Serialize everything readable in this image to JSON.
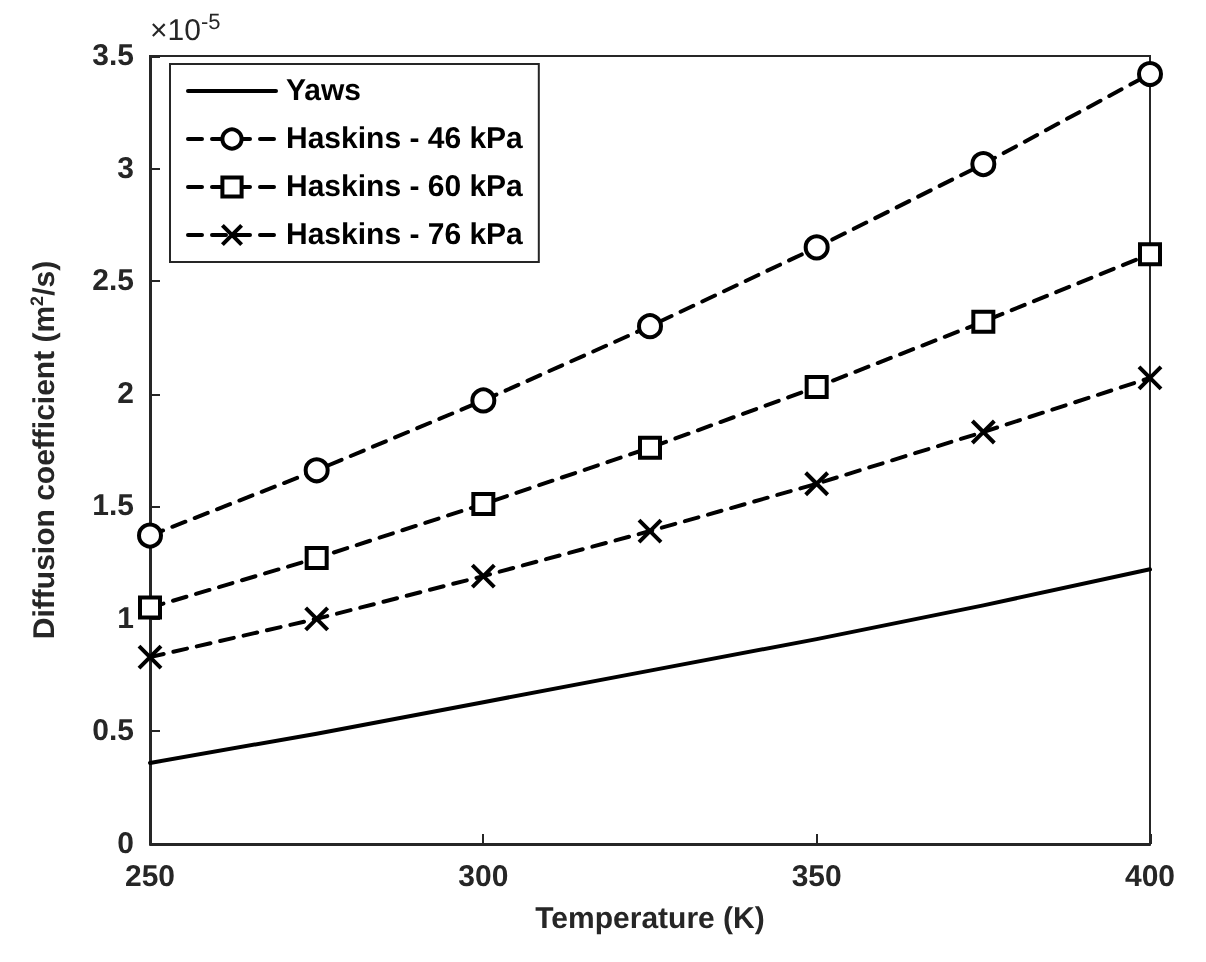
{
  "chart_data": {
    "type": "line",
    "xlabel": "Temperature (K)",
    "ylabel": "Diffusion coefficient (m$^{2}$/s)",
    "annotations": [
      "×10$^{-5}$"
    ],
    "x": [
      250,
      275,
      300,
      325,
      350,
      375,
      400
    ],
    "series": [
      {
        "name": "Yaws",
        "color": "#000000",
        "line_style": "solid",
        "marker": "none",
        "values": [
          0.36,
          0.49,
          0.63,
          0.77,
          0.91,
          1.06,
          1.22
        ]
      },
      {
        "name": "Haskins - 46 kPa",
        "color": "#000000",
        "line_style": "dashed",
        "marker": "circle",
        "values": [
          1.37,
          1.66,
          1.97,
          2.3,
          2.65,
          3.02,
          3.42
        ]
      },
      {
        "name": "Haskins - 60 kPa",
        "color": "#000000",
        "line_style": "dashed",
        "marker": "square",
        "values": [
          1.05,
          1.27,
          1.51,
          1.76,
          2.03,
          2.32,
          2.62
        ]
      },
      {
        "name": "Haskins - 76 kPa",
        "color": "#000000",
        "line_style": "dashed",
        "marker": "cross",
        "values": [
          0.83,
          1.0,
          1.19,
          1.39,
          1.6,
          1.83,
          2.07
        ]
      }
    ],
    "xlim": [
      250,
      400
    ],
    "xticks": [
      250,
      300,
      350,
      400
    ],
    "ylim": [
      0,
      3.5
    ],
    "yticks": [
      0,
      0.5,
      1,
      1.5,
      2,
      2.5,
      3,
      3.5
    ],
    "grid": false,
    "legend": "top left"
  }
}
